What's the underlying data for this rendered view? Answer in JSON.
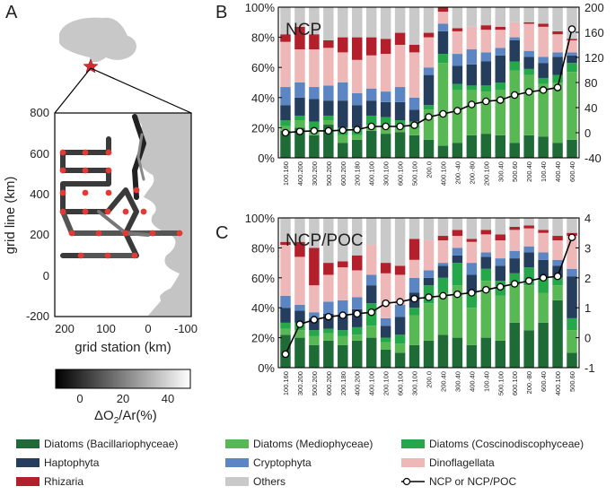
{
  "panel_labels": {
    "a": "A",
    "b": "B",
    "c": "C"
  },
  "colors": {
    "diatoms_bacillariophyceae": "#1e6b37",
    "diatoms_mediophyceae": "#58b954",
    "diatoms_coscinodiscophyceae": "#24a84a",
    "haptophyta": "#253e5e",
    "cryptophyta": "#5b86c3",
    "dinoflagellata": "#efb8b8",
    "rhizaria": "#b31f2a",
    "others": "#c9c9c9"
  },
  "map": {
    "xlabel": "grid station (km)",
    "ylabel": "grid line (km)",
    "xticks": [
      "200",
      "100",
      "0",
      "-100"
    ],
    "yticks": [
      "800",
      "600",
      "400",
      "200",
      "0",
      "-200"
    ],
    "colorbar_label_main": "ΔO",
    "colorbar_label_sub": "2",
    "colorbar_label_rest": "/Ar(%)",
    "colorbar_ticks": [
      "0",
      "20",
      "40"
    ],
    "station_marker_color": "#e53935"
  },
  "legend": [
    {
      "key": "diatoms_bacillariophyceae",
      "label": "Diatoms (Bacillariophyceae)"
    },
    {
      "key": "diatoms_mediophyceae",
      "label": "Diatoms (Mediophyceae)"
    },
    {
      "key": "diatoms_coscinodiscophyceae",
      "label": "Diatoms (Coscinodiscophyceae)"
    },
    {
      "key": "haptophyta",
      "label": "Haptophyta"
    },
    {
      "key": "cryptophyta",
      "label": "Cryptophyta"
    },
    {
      "key": "dinoflagellata",
      "label": "Dinoflagellata"
    },
    {
      "key": "rhizaria",
      "label": "Rhizaria"
    },
    {
      "key": "others",
      "label": "Others"
    },
    {
      "key": "line",
      "label": "NCP or NCP/POC"
    }
  ],
  "chart_data": [
    {
      "type": "bar",
      "stacked": true,
      "panel": "B",
      "title": "NCP",
      "left_axis_ticks": [
        "0%",
        "20%",
        "40%",
        "60%",
        "80%",
        "100%"
      ],
      "right_axis_ticks": [
        "-40",
        "0",
        "40",
        "80",
        "120",
        "160",
        "200"
      ],
      "right_axis_range": [
        -40,
        200
      ],
      "categories": [
        "100.160",
        "400.200",
        "300.200",
        "500.200",
        "600.200",
        "200.180",
        "400.100",
        "300.100",
        "600.100",
        "500.100",
        "200.0",
        "400.100",
        "200.-40",
        "200.-80",
        "200.100",
        "300.40",
        "500.60",
        "200.40",
        "100.40",
        "400.40",
        "600.40"
      ],
      "series": [
        {
          "name": "Diatoms (Bacillariophyceae)",
          "values": [
            18,
            20,
            15,
            22,
            10,
            12,
            18,
            16,
            17,
            15,
            12,
            8,
            10,
            15,
            16,
            15,
            10,
            15,
            14,
            10,
            12
          ]
        },
        {
          "name": "Diatoms (Mediophyceae)",
          "values": [
            3,
            5,
            4,
            3,
            5,
            3,
            4,
            5,
            3,
            5,
            20,
            55,
            35,
            30,
            28,
            30,
            48,
            40,
            35,
            40,
            45
          ]
        },
        {
          "name": "Diatoms (Coscinodiscophyceae)",
          "values": [
            4,
            3,
            5,
            3,
            5,
            5,
            6,
            6,
            5,
            4,
            3,
            6,
            4,
            3,
            4,
            5,
            6,
            4,
            4,
            5,
            6
          ]
        },
        {
          "name": "Haptophyta",
          "values": [
            10,
            12,
            15,
            10,
            18,
            15,
            10,
            10,
            12,
            8,
            20,
            15,
            12,
            14,
            16,
            18,
            14,
            8,
            10,
            12,
            5
          ]
        },
        {
          "name": "Cryptophyta",
          "values": [
            12,
            10,
            8,
            10,
            12,
            8,
            8,
            7,
            10,
            8,
            5,
            5,
            8,
            10,
            6,
            5,
            2,
            4,
            4,
            3,
            2
          ]
        },
        {
          "name": "Dinoflagellata",
          "values": [
            30,
            22,
            25,
            25,
            20,
            22,
            22,
            25,
            28,
            30,
            20,
            8,
            15,
            15,
            15,
            12,
            10,
            18,
            20,
            12,
            8
          ]
        },
        {
          "name": "Rhizaria",
          "values": [
            5,
            15,
            10,
            5,
            10,
            15,
            12,
            10,
            8,
            5,
            3,
            3,
            2,
            0,
            3,
            2,
            0,
            1,
            2,
            2,
            1
          ]
        },
        {
          "name": "Others",
          "values": [
            18,
            13,
            18,
            22,
            20,
            20,
            20,
            21,
            17,
            25,
            17,
            0,
            14,
            13,
            12,
            13,
            10,
            10,
            11,
            16,
            21
          ]
        }
      ],
      "line": {
        "name": "NCP",
        "values": [
          0,
          2,
          3,
          3,
          4,
          5,
          10,
          10,
          10,
          12,
          25,
          30,
          35,
          45,
          50,
          52,
          60,
          65,
          68,
          72,
          165
        ]
      }
    },
    {
      "type": "bar",
      "stacked": true,
      "panel": "C",
      "title": "NCP/POC",
      "left_axis_ticks": [
        "0%",
        "20%",
        "40%",
        "60%",
        "80%",
        "100%"
      ],
      "right_axis_ticks": [
        "-1",
        "0",
        "1",
        "2",
        "3",
        "4"
      ],
      "right_axis_range": [
        -1,
        4
      ],
      "categories": [
        "100.160",
        "300.200",
        "500.200",
        "600.200",
        "200.180",
        "400.200",
        "400.100",
        "200.100",
        "600.100",
        "300.100",
        "200.0",
        "200.40",
        "300.40",
        "400.40",
        "100.40",
        "500.100",
        "600.100",
        "200.-80",
        "600.40",
        "400.100",
        "500.60"
      ],
      "series": [
        {
          "name": "Diatoms (Bacillariophyceae)",
          "values": [
            22,
            20,
            15,
            18,
            15,
            18,
            20,
            12,
            10,
            15,
            18,
            22,
            20,
            15,
            20,
            18,
            30,
            25,
            30,
            45,
            10
          ]
        },
        {
          "name": "Diatoms (Mediophyceae)",
          "values": [
            4,
            5,
            6,
            5,
            6,
            4,
            8,
            5,
            6,
            20,
            25,
            28,
            35,
            25,
            38,
            30,
            25,
            30,
            20,
            10,
            15
          ]
        },
        {
          "name": "Diatoms (Coscinodiscophyceae)",
          "values": [
            4,
            5,
            4,
            3,
            4,
            5,
            15,
            3,
            6,
            5,
            12,
            10,
            15,
            10,
            8,
            10,
            8,
            12,
            10,
            5,
            8
          ]
        },
        {
          "name": "Haptophyta",
          "values": [
            10,
            8,
            8,
            10,
            10,
            12,
            12,
            8,
            12,
            10,
            5,
            8,
            5,
            12,
            8,
            10,
            10,
            10,
            12,
            8,
            28
          ]
        },
        {
          "name": "Cryptophyta",
          "values": [
            8,
            4,
            4,
            8,
            10,
            8,
            7,
            5,
            8,
            10,
            5,
            2,
            5,
            8,
            3,
            5,
            5,
            4,
            5,
            4,
            5
          ]
        },
        {
          "name": "Dinoflagellata",
          "values": [
            34,
            32,
            18,
            18,
            22,
            18,
            20,
            30,
            20,
            12,
            20,
            15,
            8,
            14,
            12,
            12,
            14,
            12,
            13,
            13,
            22
          ]
        },
        {
          "name": "Rhizaria",
          "values": [
            2,
            10,
            25,
            8,
            4,
            10,
            0,
            7,
            6,
            14,
            0,
            3,
            4,
            2,
            3,
            4,
            2,
            2,
            2,
            3,
            2
          ]
        },
        {
          "name": "Others",
          "values": [
            16,
            16,
            20,
            30,
            29,
            25,
            18,
            30,
            32,
            14,
            15,
            12,
            8,
            14,
            8,
            11,
            6,
            5,
            8,
            12,
            10
          ]
        }
      ],
      "line": {
        "name": "NCP/POC",
        "values": [
          -0.55,
          0.45,
          0.6,
          0.7,
          0.75,
          0.8,
          0.85,
          1.15,
          1.2,
          1.3,
          1.35,
          1.4,
          1.45,
          1.5,
          1.6,
          1.7,
          1.8,
          1.9,
          2.0,
          2.05,
          3.35
        ]
      }
    }
  ]
}
